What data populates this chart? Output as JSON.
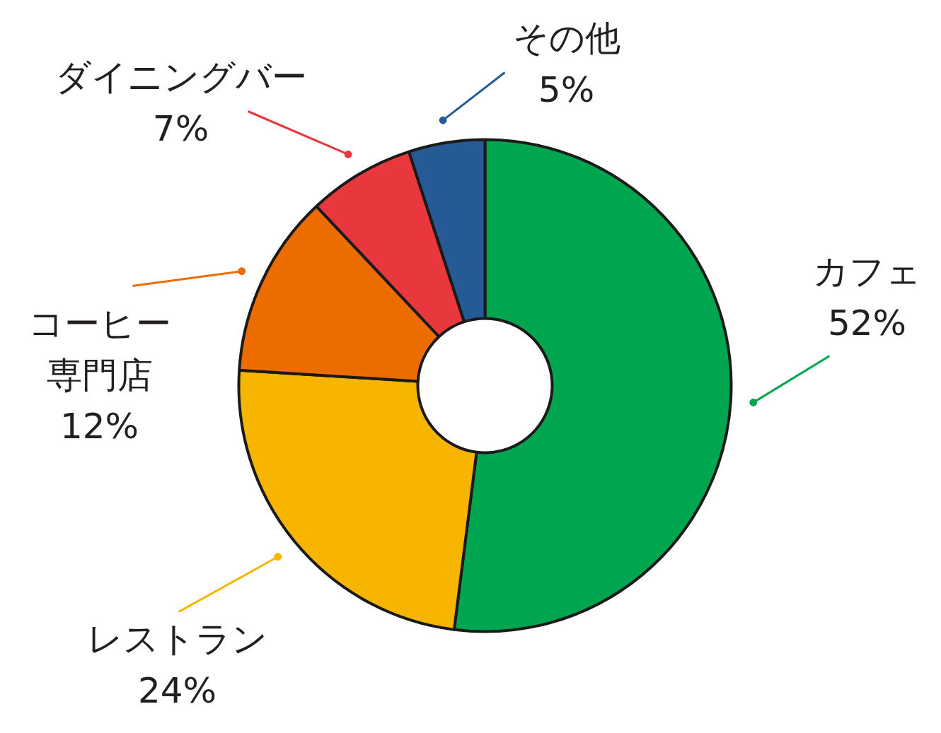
{
  "chart_data": {
    "type": "donut",
    "categories": [
      "カフェ",
      "レストラン",
      "コーヒー専門店",
      "ダイニングバー",
      "その他"
    ],
    "values": [
      52,
      24,
      12,
      7,
      5
    ],
    "value_labels": [
      "52%",
      "24%",
      "12%",
      "7%",
      "5%"
    ],
    "colors": [
      "#00a54f",
      "#f7b500",
      "#ec6c00",
      "#e8383d",
      "#255a97"
    ]
  }
}
